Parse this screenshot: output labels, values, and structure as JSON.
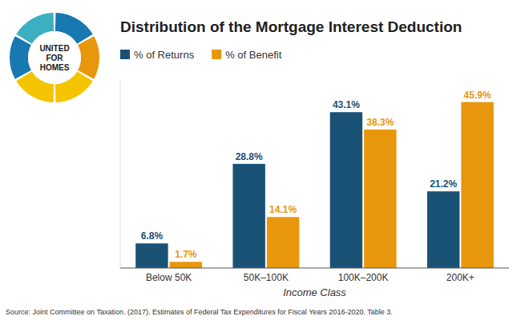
{
  "chart_data": {
    "type": "bar",
    "title": "Distribution of the Mortgage Interest Deduction",
    "xlabel": "Income Class",
    "categories": [
      "Below 50K",
      "50K–100K",
      "100K–200K",
      "200K+"
    ],
    "series": [
      {
        "name": "% of Returns",
        "color": "#1a5276",
        "values": [
          6.8,
          28.8,
          43.1,
          21.2
        ],
        "value_labels": [
          "6.8%",
          "28.8%",
          "43.1%",
          "21.2%"
        ]
      },
      {
        "name": "% of Benefit",
        "color": "#e8960c",
        "values": [
          1.7,
          14.1,
          38.3,
          45.9
        ],
        "value_labels": [
          "1.7%",
          "14.1%",
          "38.3%",
          "45.9%"
        ]
      }
    ],
    "ylim": [
      0,
      52
    ],
    "data_labels": true,
    "tick_labels": "x",
    "grid": false,
    "legend": "upper left",
    "annotations": [
      "Source: Joint Committee on Taxation. (2017). Estimates of Federal Tax Expenditures for Fiscal Years 2016-2020. Table 3.",
      "UNITED",
      "FOR",
      "HOMES"
    ]
  }
}
